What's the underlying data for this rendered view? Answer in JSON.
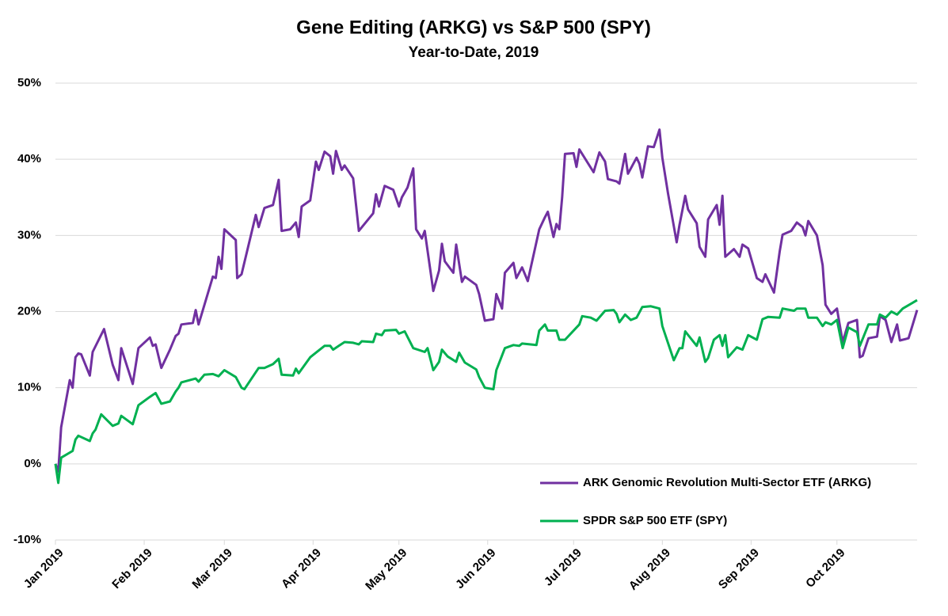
{
  "chart_data": {
    "type": "line",
    "title": "Gene Editing (ARKG) vs S&P 500 (SPY)",
    "subtitle": "Year-to-Date, 2019",
    "xlim": [
      0,
      301
    ],
    "xticks": [
      {
        "value": 0,
        "label": "Jan 2019"
      },
      {
        "value": 31,
        "label": "Feb 2019"
      },
      {
        "value": 59,
        "label": "Mar 2019"
      },
      {
        "value": 90,
        "label": "Apr 2019"
      },
      {
        "value": 120,
        "label": "May 2019"
      },
      {
        "value": 151,
        "label": "Jun 2019"
      },
      {
        "value": 181,
        "label": "Jul 2019"
      },
      {
        "value": 212,
        "label": "Aug 2019"
      },
      {
        "value": 243,
        "label": "Sep 2019"
      },
      {
        "value": 273,
        "label": "Oct 2019"
      }
    ],
    "ylim": [
      -10,
      50
    ],
    "yticks": [
      {
        "value": -10,
        "label": "-10%"
      },
      {
        "value": 0,
        "label": "0%"
      },
      {
        "value": 10,
        "label": "10%"
      },
      {
        "value": 20,
        "label": "20%"
      },
      {
        "value": 30,
        "label": "30%"
      },
      {
        "value": 40,
        "label": "40%"
      },
      {
        "value": 50,
        "label": "50%"
      }
    ],
    "grid": true,
    "legend": "lower right",
    "series": [
      {
        "name": "ARK Genomic Revolution Multi-Sector ETF (ARKG)",
        "color": "#7030a0",
        "x": [
          0,
          1,
          2,
          5,
          6,
          7,
          8,
          9,
          12,
          13,
          17,
          20,
          22,
          23,
          27,
          29,
          33,
          34,
          35,
          37,
          40,
          42,
          43,
          44,
          48,
          49,
          50,
          55,
          56,
          57,
          58,
          59,
          63,
          63.5,
          65,
          70,
          71,
          73,
          76,
          78,
          79,
          82,
          84,
          85,
          86,
          89,
          91,
          92,
          94,
          96,
          97,
          98,
          100,
          101,
          104,
          106,
          111,
          112,
          113,
          115,
          118,
          120,
          121,
          123,
          125,
          126,
          128,
          129,
          132,
          134,
          135,
          136,
          139,
          140,
          142,
          143,
          147,
          148,
          150,
          153,
          154,
          156,
          157,
          160,
          161,
          163,
          165,
          169,
          171,
          172,
          174,
          175,
          176,
          177,
          178,
          181,
          182,
          183,
          188,
          190,
          192,
          193,
          196,
          197,
          199,
          200,
          203,
          204,
          205,
          207,
          209,
          211,
          212,
          214,
          217,
          218,
          220,
          221,
          224,
          225,
          227,
          228,
          231,
          232,
          233,
          234,
          237,
          239,
          240,
          242,
          245,
          247,
          248,
          251,
          253,
          254,
          257,
          259,
          261,
          262,
          263,
          266,
          268,
          269,
          271,
          273,
          275,
          277,
          280,
          281,
          282,
          284,
          287,
          288,
          290,
          292,
          294,
          295,
          298,
          301
        ],
        "values": [
          0,
          -1,
          4.8,
          11,
          10,
          14,
          14.5,
          14.4,
          11.6,
          14.7,
          17.7,
          13,
          11,
          15.2,
          10.5,
          15.2,
          16.6,
          15.5,
          15.7,
          12.6,
          15,
          16.8,
          17.1,
          18.3,
          18.5,
          20.2,
          18.3,
          24.6,
          24.4,
          27.2,
          25.6,
          30.8,
          29.4,
          24.4,
          24.9,
          32.7,
          31.1,
          33.6,
          34,
          37.3,
          30.6,
          30.8,
          31.7,
          29.8,
          33.8,
          34.6,
          39.7,
          38.6,
          41,
          40.4,
          38.1,
          41.1,
          38.6,
          39.2,
          37.5,
          30.6,
          32.9,
          35.4,
          33.8,
          36.5,
          36,
          33.8,
          35,
          36.3,
          38.8,
          30.8,
          29.6,
          30.6,
          22.7,
          25.4,
          28.9,
          26.6,
          25.1,
          28.8,
          23.9,
          24.6,
          23.5,
          22.3,
          18.8,
          19,
          22.3,
          20.4,
          25.1,
          26.4,
          24.4,
          25.8,
          24,
          30.8,
          32.4,
          33.1,
          29.8,
          31.5,
          30.8,
          35,
          40.7,
          40.8,
          39,
          41.3,
          38.3,
          40.9,
          39.7,
          37.4,
          37.1,
          36.8,
          40.7,
          38.1,
          40.2,
          39.4,
          37.6,
          41.7,
          41.6,
          43.9,
          40.2,
          35.5,
          29.1,
          31.4,
          35.2,
          33.4,
          31.6,
          28.5,
          27.2,
          32.1,
          34,
          31.4,
          35.2,
          27.2,
          28.2,
          27.2,
          28.8,
          28.3,
          24.4,
          23.9,
          24.9,
          22.5,
          27.9,
          30.1,
          30.6,
          31.7,
          31.1,
          30,
          31.9,
          30,
          26.1,
          20.9,
          19.7,
          20.4,
          16,
          18.5,
          18.9,
          14,
          14.2,
          16.5,
          16.7,
          19.4,
          18.9,
          16,
          18.3,
          16.2,
          16.5,
          20.2
        ]
      },
      {
        "name": "SPDR S&P 500 ETF (SPY)",
        "color": "#00b050",
        "x": [
          0,
          1,
          2,
          6,
          7,
          8,
          12,
          13,
          14,
          16,
          20,
          22,
          23,
          27,
          29,
          33,
          35,
          37,
          40,
          42,
          43,
          44,
          49,
          50,
          52,
          55,
          57,
          59,
          63,
          65,
          66,
          71,
          73,
          76,
          78,
          79,
          83,
          84,
          85,
          89,
          91,
          94,
          96,
          97,
          99,
          101,
          104,
          106,
          107,
          111,
          112,
          114,
          115,
          119,
          120,
          122,
          125,
          129,
          130,
          132,
          134,
          135,
          137,
          140,
          141,
          143,
          147,
          148,
          150,
          153,
          154,
          157,
          160,
          162,
          163,
          168,
          169,
          171,
          172,
          175,
          176,
          178,
          183,
          184,
          187,
          189,
          192,
          195,
          196,
          197,
          199,
          201,
          203,
          205,
          208,
          211,
          212,
          216,
          218,
          219,
          220,
          224,
          225,
          227,
          228,
          230,
          232,
          233,
          234,
          235,
          238,
          240,
          242,
          245,
          247,
          249,
          253,
          254,
          258,
          259,
          262,
          263,
          266,
          268,
          269,
          271,
          273,
          275,
          277,
          280,
          281,
          284,
          287,
          288,
          290,
          292,
          294,
          296,
          301
        ],
        "values": [
          0,
          -2.5,
          0.8,
          1.7,
          3.2,
          3.7,
          3,
          4,
          4.5,
          6.5,
          5,
          5.3,
          6.3,
          5.2,
          7.7,
          8.8,
          9.3,
          7.9,
          8.2,
          9.5,
          10,
          10.7,
          11.2,
          10.8,
          11.7,
          11.8,
          11.5,
          12.3,
          11.4,
          10,
          9.8,
          12.6,
          12.6,
          13.1,
          13.8,
          11.7,
          11.6,
          12.5,
          11.9,
          14,
          14.6,
          15.5,
          15.5,
          15,
          15.5,
          16,
          15.9,
          15.7,
          16.1,
          16,
          17.1,
          16.9,
          17.5,
          17.6,
          17.1,
          17.4,
          15.2,
          14.7,
          15.2,
          12.3,
          13.4,
          15,
          14.1,
          13.4,
          14.6,
          13.3,
          12.4,
          11.4,
          10,
          9.8,
          12.3,
          15.2,
          15.6,
          15.5,
          15.8,
          15.6,
          17.5,
          18.3,
          17.5,
          17.5,
          16.3,
          16.3,
          18.3,
          19.4,
          19.2,
          18.8,
          20.1,
          20.2,
          19.7,
          18.6,
          19.6,
          18.9,
          19.2,
          20.6,
          20.7,
          20.4,
          18.1,
          13.6,
          15.2,
          15.2,
          17.4,
          15.5,
          16.6,
          13.4,
          13.9,
          16.3,
          16.9,
          15.5,
          16.9,
          14,
          15.3,
          15,
          16.9,
          16.3,
          19,
          19.3,
          19.2,
          20.4,
          20.1,
          20.4,
          20.4,
          19.2,
          19.2,
          18.1,
          18.6,
          18.3,
          18.9,
          15.2,
          17.9,
          17.3,
          15.5,
          18.3,
          18.3,
          19.6,
          19.2,
          20,
          19.6,
          20.4,
          21.5
        ]
      }
    ]
  }
}
